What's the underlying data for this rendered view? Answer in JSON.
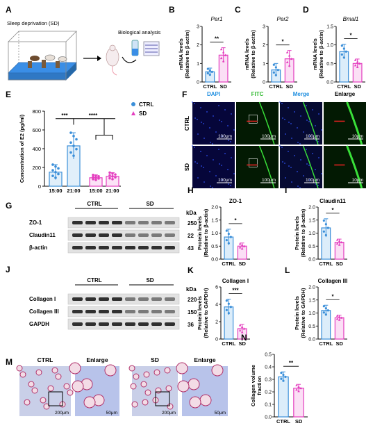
{
  "panels": {
    "A": {
      "letter": "A",
      "sd_label": "Sleep deprivation (SD)",
      "bio_label": "Biological analysis"
    },
    "B": {
      "letter": "B",
      "gene": "Per1",
      "ylabel1": "mRNA levels",
      "ylabel2": "(Relative to β-actin)",
      "sig": "**",
      "ticks": [
        "0",
        "1",
        "2",
        "3"
      ],
      "cats": [
        "CTRL",
        "SD"
      ],
      "values": [
        0.55,
        1.45
      ],
      "errors": [
        0.2,
        0.4
      ],
      "ymax": 3
    },
    "C": {
      "letter": "C",
      "gene": "Per2",
      "ylabel1": "mRNA levels",
      "ylabel2": "(Relative to β-actin)",
      "sig": "*",
      "ticks": [
        "0",
        "1",
        "2",
        "3"
      ],
      "cats": [
        "CTRL",
        "SD"
      ],
      "values": [
        0.65,
        1.25
      ],
      "errors": [
        0.35,
        0.45
      ],
      "ymax": 3
    },
    "D": {
      "letter": "D",
      "gene": "Bmal1",
      "ylabel1": "mRNA levels",
      "ylabel2": "(Relative to β-actin)",
      "sig": "*",
      "ticks": [
        "0.0",
        "0.5",
        "1.0",
        "1.5"
      ],
      "cats": [
        "CTRL",
        "SD"
      ],
      "values": [
        0.82,
        0.5
      ],
      "errors": [
        0.2,
        0.12
      ],
      "ymax": 1.5
    },
    "E": {
      "letter": "E",
      "ylabel": "Concentration of E2 (pg/ml)",
      "ticks": [
        "0",
        "200",
        "400",
        "600",
        "800"
      ],
      "legend": [
        "CTRL",
        "SD"
      ],
      "sig1": "***",
      "sig2": "****",
      "xticks": [
        "15:00",
        "21:00",
        "15:00",
        "21:00"
      ],
      "values": [
        150,
        430,
        90,
        105
      ],
      "errors": [
        80,
        140,
        30,
        40
      ],
      "ymax": 800
    },
    "F": {
      "letter": "F",
      "cols": [
        "DAPI",
        "FITC",
        "Merge",
        "Enlarge"
      ],
      "rows": [
        "CTRL",
        "SD"
      ],
      "scale": "100μm",
      "scale_enlarge": "10μm"
    },
    "G": {
      "letter": "G",
      "groups": [
        "CTRL",
        "SD"
      ],
      "rows": [
        "ZO-1",
        "Claudin11",
        "β-actin"
      ],
      "kda_title": "kDa",
      "kda": [
        "250",
        "22",
        "43"
      ]
    },
    "H": {
      "letter": "H",
      "title": "ZO-1",
      "ylabel1": "Protein levels",
      "ylabel2": "(Relative to β-actin)",
      "sig": "*",
      "ticks": [
        "0.0",
        "0.5",
        "1.0",
        "1.5",
        "2.0"
      ],
      "cats": [
        "CTRL",
        "SD"
      ],
      "values": [
        0.85,
        0.5
      ],
      "errors": [
        0.3,
        0.12
      ],
      "ymax": 2.0
    },
    "I": {
      "letter": "I",
      "title": "Claudin11",
      "ylabel1": "Protein levels",
      "ylabel2": "(Relative to β-actin)",
      "sig": "*",
      "ticks": [
        "0.0",
        "0.5",
        "1.0",
        "1.5",
        "2.0"
      ],
      "cats": [
        "CTRL",
        "SD"
      ],
      "values": [
        1.2,
        0.65
      ],
      "errors": [
        0.35,
        0.12
      ],
      "ymax": 2.0
    },
    "J": {
      "letter": "J",
      "groups": [
        "CTRL",
        "SD"
      ],
      "rows": [
        "Collagen I",
        "Collagen III",
        "GAPDH"
      ],
      "kda_title": "kDa",
      "kda": [
        "220",
        "150",
        "36"
      ]
    },
    "K": {
      "letter": "K",
      "title": "Collagen I",
      "ylabel1": "Protein levels",
      "ylabel2": "(Relative to GAPDH)",
      "sig": "***",
      "ticks": [
        "0",
        "2",
        "4",
        "6"
      ],
      "cats": [
        "CTRL",
        "SD"
      ],
      "values": [
        3.7,
        1.2
      ],
      "errors": [
        0.9,
        0.5
      ],
      "ymax": 6
    },
    "L": {
      "letter": "L",
      "title": "Collagen III",
      "ylabel1": "Protein levels",
      "ylabel2": "(Relative to GAPDH)",
      "sig": "*",
      "ticks": [
        "0.0",
        "0.5",
        "1.0",
        "1.5",
        "2.0"
      ],
      "cats": [
        "CTRL",
        "SD"
      ],
      "values": [
        1.1,
        0.82
      ],
      "errors": [
        0.2,
        0.1
      ],
      "ymax": 2.0
    },
    "M": {
      "letter": "M",
      "labels": [
        "CTRL",
        "Enlarge",
        "SD",
        "Enlarge"
      ],
      "scale": "200μm",
      "scale_enlarge": "50μm"
    },
    "N": {
      "letter": "N",
      "ylabel1": "Collagen volume",
      "ylabel2": "fraction",
      "sig": "**",
      "ticks": [
        "0.0",
        "0.1",
        "0.2",
        "0.3",
        "0.4",
        "0.5"
      ],
      "cats": [
        "CTRL",
        "SD"
      ],
      "values": [
        0.32,
        0.23
      ],
      "errors": [
        0.04,
        0.03
      ],
      "ymax": 0.5
    }
  },
  "colors": {
    "ctrl": "#3b8fd9",
    "sd": "#e43fbf",
    "ctrl_fill": "#9ccaf0",
    "sd_fill": "#f4a3e2"
  }
}
